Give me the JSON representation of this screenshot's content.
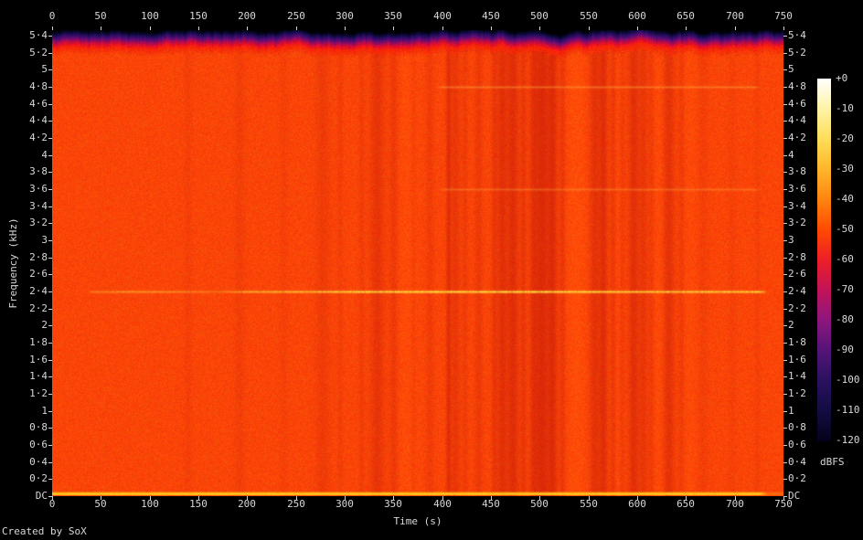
{
  "figure": {
    "credit": "Created by SoX",
    "x_axis": {
      "label": "Time (s)",
      "tick_values": [
        0,
        50,
        100,
        150,
        200,
        250,
        300,
        350,
        400,
        450,
        500,
        550,
        600,
        650,
        700,
        750
      ]
    },
    "y_axis": {
      "label": "Frequency (kHz)",
      "tick_labels": [
        "5·4",
        "5·2",
        "5",
        "4·8",
        "4·6",
        "4·4",
        "4·2",
        "4",
        "3·8",
        "3·6",
        "3·4",
        "3·2",
        "3",
        "2·8",
        "2·6",
        "2·4",
        "2·2",
        "2",
        "1·8",
        "1·6",
        "1·4",
        "1·2",
        "1",
        "0·8",
        "0·6",
        "0·4",
        "0·2",
        "DC"
      ]
    },
    "colorbar": {
      "unit_label": "dBFS",
      "tick_labels": [
        "+0",
        "-10",
        "-20",
        "-30",
        "-40",
        "-50",
        "-60",
        "-70",
        "-80",
        "-90",
        "-100",
        "-110",
        "-120"
      ],
      "gradient": [
        "#ffffff",
        "#fff3a6",
        "#ffdd57",
        "#ffb62b",
        "#ff8410",
        "#ff4a02",
        "#ed1e26",
        "#c11459",
        "#8d167d",
        "#541478",
        "#2a115f",
        "#120c42",
        "#04021a"
      ]
    }
  },
  "chart_data": {
    "type": "heatmap",
    "title": "",
    "xlabel": "Time (s)",
    "ylabel": "Frequency (kHz)",
    "zlabel": "dBFS",
    "x_range_s": [
      0,
      750
    ],
    "y_range_khz": [
      0,
      5.46
    ],
    "z_range_dbfs": [
      -120,
      0
    ],
    "legend_position": "right-colorbar",
    "grid": false,
    "background_level_dbfs": -40,
    "base_color": "#ff4402",
    "features": {
      "rolloff_band": {
        "description": "lowpass rolloff above ~5.2 kHz: orange fades through red, magenta, purple, navy to black at top edge",
        "start_khz": 5.15,
        "end_khz": 5.46,
        "ramp": [
          [
            0.0,
            0,
            0,
            2
          ],
          [
            0.1,
            9,
            7,
            48
          ],
          [
            0.22,
            42,
            13,
            99
          ],
          [
            0.35,
            99,
            13,
            115
          ],
          [
            0.47,
            176,
            11,
            78
          ],
          [
            0.59,
            231,
            16,
            38
          ],
          [
            0.71,
            252,
            38,
            8
          ]
        ]
      },
      "dark_time_bands": [
        [
          139,
          7,
          0.1
        ],
        [
          192,
          9,
          0.13
        ],
        [
          237,
          7,
          0.09
        ],
        [
          277,
          12,
          0.18
        ],
        [
          295,
          5,
          0.13
        ],
        [
          317,
          5,
          0.15
        ],
        [
          333,
          12,
          0.3
        ],
        [
          350,
          7,
          0.22
        ],
        [
          370,
          5,
          0.13
        ],
        [
          387,
          7,
          0.17
        ],
        [
          406,
          4,
          0.4
        ],
        [
          413,
          8,
          0.26
        ],
        [
          423,
          5,
          0.18
        ],
        [
          437,
          7,
          0.22
        ],
        [
          453,
          5,
          0.26
        ],
        [
          461,
          8,
          0.38
        ],
        [
          472,
          10,
          0.42
        ],
        [
          483,
          5,
          0.26
        ],
        [
          493,
          7,
          0.3
        ],
        [
          502,
          12,
          0.48
        ],
        [
          513,
          8,
          0.42
        ],
        [
          523,
          5,
          0.26
        ],
        [
          556,
          9,
          0.34
        ],
        [
          565,
          7,
          0.4
        ],
        [
          575,
          5,
          0.26
        ],
        [
          584,
          5,
          0.17
        ],
        [
          596,
          9,
          0.38
        ],
        [
          606,
          7,
          0.26
        ],
        [
          614,
          5,
          0.17
        ],
        [
          632,
          10,
          0.34
        ],
        [
          645,
          5,
          0.17
        ],
        [
          667,
          9,
          0.12
        ],
        [
          697,
          7,
          0.09
        ],
        [
          723,
          5,
          0.1
        ]
      ],
      "bright_time_bands": [
        [
          364,
          18,
          0.1
        ],
        [
          537,
          16,
          0.12
        ],
        [
          579,
          9,
          0.07
        ],
        [
          622,
          9,
          0.09
        ],
        [
          654,
          12,
          0.07
        ]
      ],
      "horizontal_lines": [
        {
          "freq_khz": 2.4,
          "color": [
            255,
            228,
            64
          ],
          "strength": 1.0,
          "env": [
            [
              0,
              0
            ],
            [
              36,
              0
            ],
            [
              40,
              0.3
            ],
            [
              78,
              0.5
            ],
            [
              134,
              0.4
            ],
            [
              172,
              0.25
            ],
            [
              200,
              0.6
            ],
            [
              247,
              0.75
            ],
            [
              322,
              1
            ],
            [
              547,
              1
            ],
            [
              603,
              0.85
            ],
            [
              725,
              0.9
            ],
            [
              734,
              0
            ],
            [
              750,
              0
            ]
          ]
        },
        {
          "freq_khz": 4.8,
          "color": [
            255,
            200,
            70
          ],
          "strength": 0.35,
          "env": [
            [
              0,
              0
            ],
            [
              392,
              0
            ],
            [
              400,
              1
            ],
            [
              720,
              1
            ],
            [
              728,
              0
            ],
            [
              750,
              0
            ]
          ]
        },
        {
          "freq_khz": 3.6,
          "color": [
            255,
            200,
            70
          ],
          "strength": 0.28,
          "env": [
            [
              0,
              0
            ],
            [
              395,
              0
            ],
            [
              403,
              1
            ],
            [
              720,
              1
            ],
            [
              728,
              0
            ],
            [
              750,
              0
            ]
          ]
        }
      ],
      "dc_line": {
        "color": [
          255,
          215,
          30
        ],
        "env": [
          [
            0,
            1
          ],
          [
            725,
            1
          ],
          [
            733,
            0.3
          ],
          [
            750,
            0.25
          ]
        ]
      }
    }
  }
}
